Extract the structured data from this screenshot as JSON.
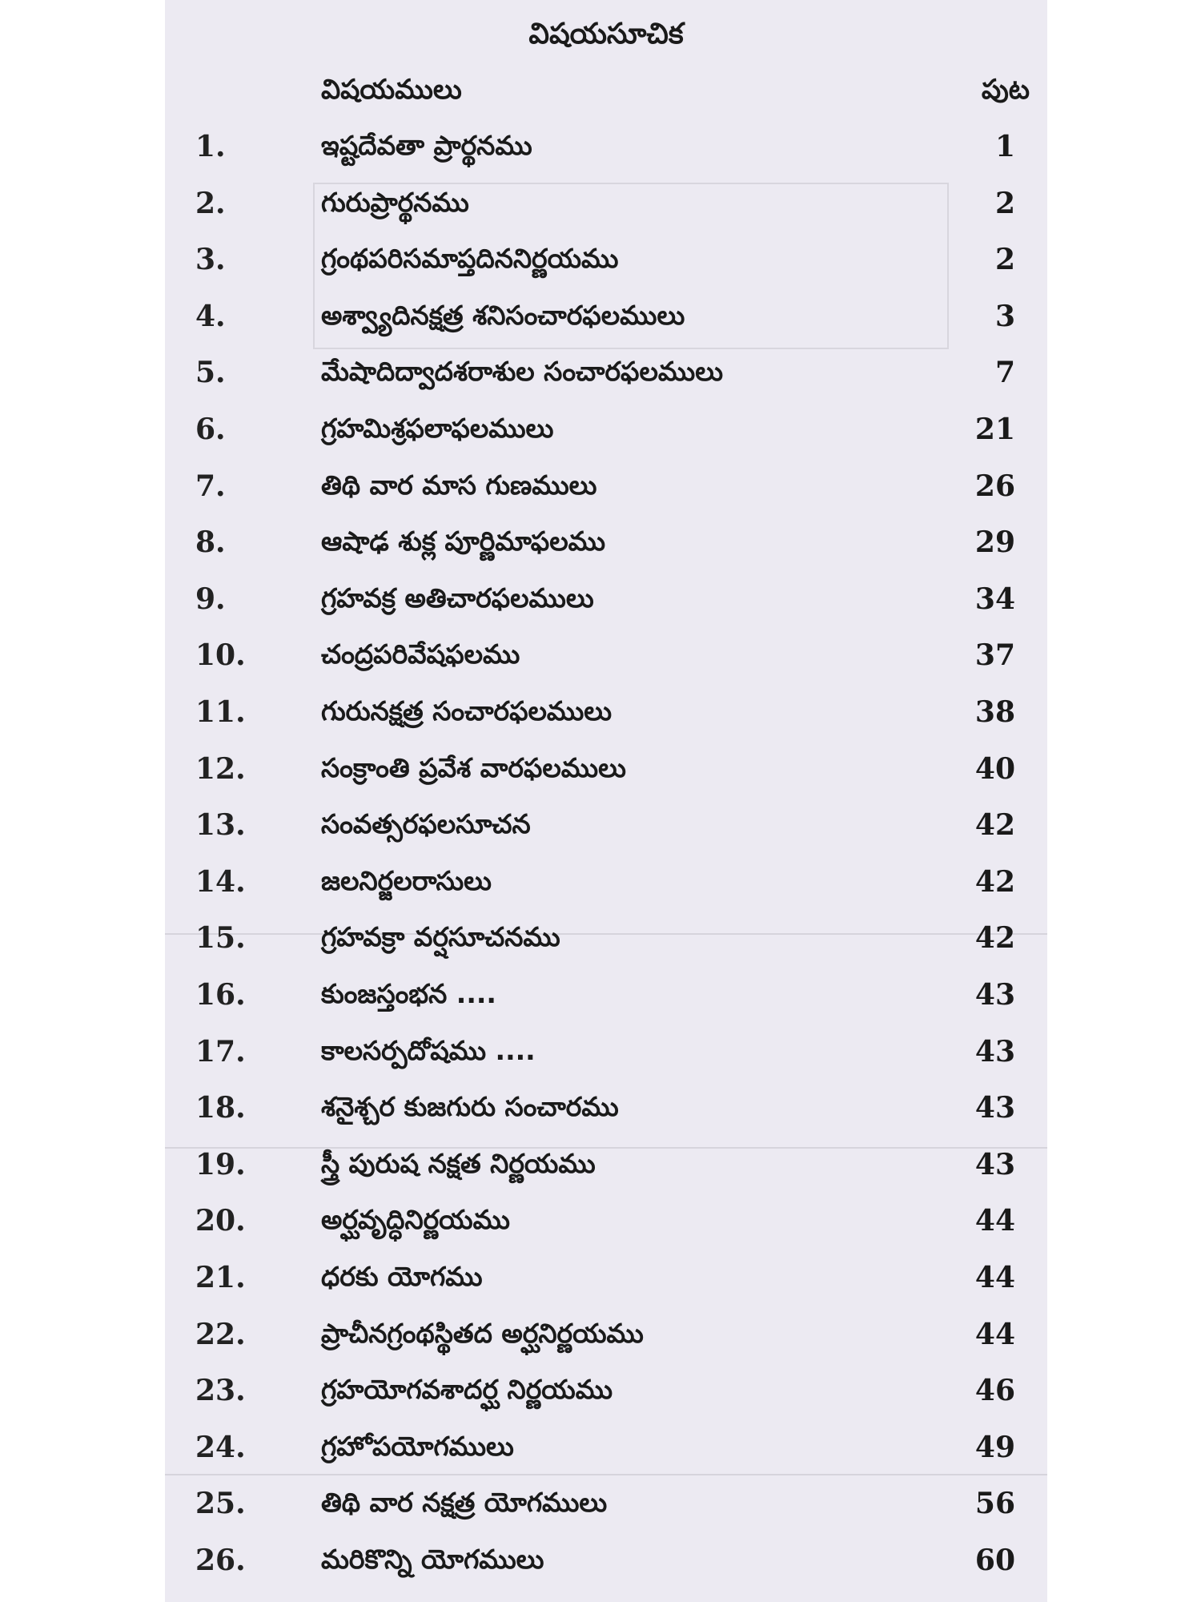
{
  "title": "విషయసూచిక",
  "header": {
    "topics_label": "విషయములు",
    "page_label": "పుట"
  },
  "entries": [
    {
      "num": "1.",
      "topic": "ఇష్టదేవతా ప్రార్థనము",
      "page": "1"
    },
    {
      "num": "2.",
      "topic": "గురుప్రార్థనము",
      "page": "2"
    },
    {
      "num": "3.",
      "topic": "గ్రంథపరిసమాప్తదిననిర్ణయము",
      "page": "2"
    },
    {
      "num": "4.",
      "topic": "అశ్వ్యాదినక్షత్ర శనిసంచారఫలములు",
      "page": "3"
    },
    {
      "num": "5.",
      "topic": "మేషాదిద్వాదశరాశుల సంచారఫలములు",
      "page": "7"
    },
    {
      "num": "6.",
      "topic": "గ్రహమిశ్రఫలాఫలములు",
      "page": "21"
    },
    {
      "num": "7.",
      "topic": "తిథి వార మాస గుణములు",
      "page": "26"
    },
    {
      "num": "8.",
      "topic": "ఆషాఢ శుక్ల పూర్ణిమాఫలము",
      "page": "29"
    },
    {
      "num": "9.",
      "topic": "గ్రహవక్ర అతిచారఫలములు",
      "page": "34"
    },
    {
      "num": "10.",
      "topic": "చంద్రపరివేషఫలము",
      "page": "37"
    },
    {
      "num": "11.",
      "topic": "గురునక్షత్ర సంచారఫలములు",
      "page": "38"
    },
    {
      "num": "12.",
      "topic": "సంక్రాంతి ప్రవేశ వారఫలములు",
      "page": "40"
    },
    {
      "num": "13.",
      "topic": "సంవత్సరఫలసూచన",
      "page": "42"
    },
    {
      "num": "14.",
      "topic": "జలనిర్జలరాసులు",
      "page": "42"
    },
    {
      "num": "15.",
      "topic": "గ్రహవక్రా వర్షసూచనము",
      "page": "42"
    },
    {
      "num": "16.",
      "topic": "కుంజస్తంభన ....",
      "page": "43"
    },
    {
      "num": "17.",
      "topic": "కాలసర్పదోషము ....",
      "page": "43"
    },
    {
      "num": "18.",
      "topic": "శనైశ్చర కుజగురు సంచారము",
      "page": "43"
    },
    {
      "num": "19.",
      "topic": "స్త్రీ పురుష నక్షత నిర్ణయము",
      "page": "43"
    },
    {
      "num": "20.",
      "topic": "అర్ఘవృద్ధినిర్ణయము",
      "page": "44"
    },
    {
      "num": "21.",
      "topic": "ధరకు యోగము",
      "page": "44"
    },
    {
      "num": "22.",
      "topic": "ప్రాచీనగ్రంథస్థితద అర్ఘనిర్ణయము",
      "page": "44"
    },
    {
      "num": "23.",
      "topic": "గ్రహయోగవశాదర్ఘ నిర్ణయము",
      "page": "46"
    },
    {
      "num": "24.",
      "topic": "గ్రహోపయోగములు",
      "page": "49"
    },
    {
      "num": "25.",
      "topic": "తిథి వార నక్షత్ర యోగములు",
      "page": "56"
    },
    {
      "num": "26.",
      "topic": "మరికొన్ని యోగములు",
      "page": "60"
    }
  ],
  "colors": {
    "paper": "#eceaf2",
    "ink": "#1a1a1a",
    "show_through": "#d6d4dc"
  }
}
